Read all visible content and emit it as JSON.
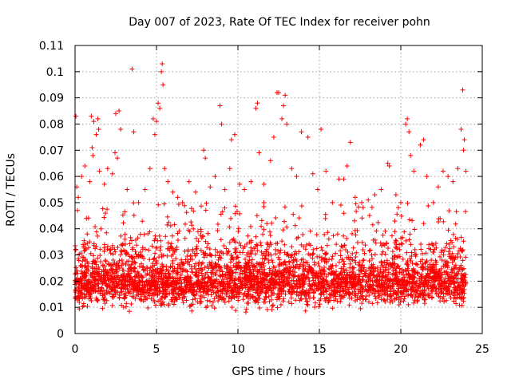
{
  "chart_data": {
    "type": "scatter",
    "title": "Day 007 of 2023, Rate Of TEC Index for receiver pohn",
    "xlabel": "GPS time / hours",
    "ylabel": "ROTI / TECUs",
    "xlim": [
      0,
      25
    ],
    "ylim": [
      0,
      0.11
    ],
    "xticks": [
      0,
      5,
      10,
      15,
      20,
      25
    ],
    "xtick_labels": [
      "0",
      "5",
      "10",
      "15",
      "20",
      "25"
    ],
    "yticks": [
      0,
      0.01,
      0.02,
      0.03,
      0.04,
      0.05,
      0.06,
      0.07,
      0.08,
      0.09,
      0.1,
      0.11
    ],
    "ytick_labels": [
      "0",
      "0.01",
      "0.02",
      "0.03",
      "0.04",
      "0.05",
      "0.06",
      "0.07",
      "0.08",
      "0.09",
      "0.1",
      "0.11"
    ],
    "grid": true,
    "marker": "+",
    "series_color": "#ff0000",
    "series": [
      {
        "name": "ROTI",
        "points": [
          [
            0.05,
            0.083
          ],
          [
            0.1,
            0.056
          ],
          [
            0.15,
            0.047
          ],
          [
            0.2,
            0.052
          ],
          [
            0.4,
            0.06
          ],
          [
            0.6,
            0.064
          ],
          [
            0.7,
            0.044
          ],
          [
            0.9,
            0.058
          ],
          [
            1.0,
            0.083
          ],
          [
            1.05,
            0.071
          ],
          [
            1.1,
            0.068
          ],
          [
            1.15,
            0.081
          ],
          [
            1.3,
            0.076
          ],
          [
            1.4,
            0.082
          ],
          [
            1.45,
            0.078
          ],
          [
            1.5,
            0.062
          ],
          [
            1.8,
            0.057
          ],
          [
            2.0,
            0.063
          ],
          [
            2.3,
            0.061
          ],
          [
            2.45,
            0.069
          ],
          [
            2.5,
            0.084
          ],
          [
            2.6,
            0.067
          ],
          [
            2.7,
            0.085
          ],
          [
            2.8,
            0.078
          ],
          [
            3.2,
            0.055
          ],
          [
            3.5,
            0.101
          ],
          [
            3.6,
            0.077
          ],
          [
            3.9,
            0.05
          ],
          [
            4.3,
            0.055
          ],
          [
            4.6,
            0.063
          ],
          [
            4.8,
            0.082
          ],
          [
            4.9,
            0.076
          ],
          [
            5.0,
            0.081
          ],
          [
            5.1,
            0.088
          ],
          [
            5.2,
            0.086
          ],
          [
            5.3,
            0.1
          ],
          [
            5.35,
            0.103
          ],
          [
            5.4,
            0.095
          ],
          [
            5.5,
            0.063
          ],
          [
            5.7,
            0.058
          ],
          [
            6.0,
            0.054
          ],
          [
            6.3,
            0.052
          ],
          [
            6.6,
            0.05
          ],
          [
            7.0,
            0.058
          ],
          [
            7.4,
            0.054
          ],
          [
            7.9,
            0.07
          ],
          [
            8.0,
            0.067
          ],
          [
            8.3,
            0.056
          ],
          [
            8.6,
            0.06
          ],
          [
            8.9,
            0.087
          ],
          [
            9.0,
            0.08
          ],
          [
            9.2,
            0.055
          ],
          [
            9.5,
            0.063
          ],
          [
            9.6,
            0.074
          ],
          [
            9.8,
            0.076
          ],
          [
            10.1,
            0.057
          ],
          [
            10.4,
            0.055
          ],
          [
            10.8,
            0.058
          ],
          [
            11.1,
            0.086
          ],
          [
            11.2,
            0.088
          ],
          [
            11.3,
            0.069
          ],
          [
            11.6,
            0.057
          ],
          [
            12.0,
            0.066
          ],
          [
            12.2,
            0.075
          ],
          [
            12.4,
            0.092
          ],
          [
            12.5,
            0.092
          ],
          [
            12.7,
            0.082
          ],
          [
            12.8,
            0.087
          ],
          [
            12.9,
            0.091
          ],
          [
            13.0,
            0.08
          ],
          [
            13.3,
            0.063
          ],
          [
            13.6,
            0.06
          ],
          [
            13.9,
            0.077
          ],
          [
            14.3,
            0.075
          ],
          [
            14.6,
            0.061
          ],
          [
            14.9,
            0.055
          ],
          [
            15.1,
            0.078
          ],
          [
            15.4,
            0.062
          ],
          [
            15.8,
            0.05
          ],
          [
            16.2,
            0.059
          ],
          [
            16.5,
            0.059
          ],
          [
            16.7,
            0.064
          ],
          [
            16.9,
            0.073
          ],
          [
            17.2,
            0.052
          ],
          [
            17.6,
            0.05
          ],
          [
            18.0,
            0.051
          ],
          [
            18.4,
            0.053
          ],
          [
            18.8,
            0.055
          ],
          [
            19.2,
            0.065
          ],
          [
            19.3,
            0.064
          ],
          [
            19.7,
            0.053
          ],
          [
            20.0,
            0.05
          ],
          [
            20.3,
            0.08
          ],
          [
            20.4,
            0.082
          ],
          [
            20.5,
            0.077
          ],
          [
            20.6,
            0.068
          ],
          [
            20.8,
            0.062
          ],
          [
            21.2,
            0.072
          ],
          [
            21.4,
            0.074
          ],
          [
            21.6,
            0.06
          ],
          [
            22.0,
            0.05
          ],
          [
            22.3,
            0.056
          ],
          [
            22.6,
            0.062
          ],
          [
            22.9,
            0.06
          ],
          [
            23.2,
            0.058
          ],
          [
            23.5,
            0.063
          ],
          [
            23.7,
            0.078
          ],
          [
            23.8,
            0.093
          ],
          [
            23.85,
            0.07
          ],
          [
            23.9,
            0.074
          ],
          [
            24.0,
            0.062
          ]
        ]
      }
    ]
  }
}
